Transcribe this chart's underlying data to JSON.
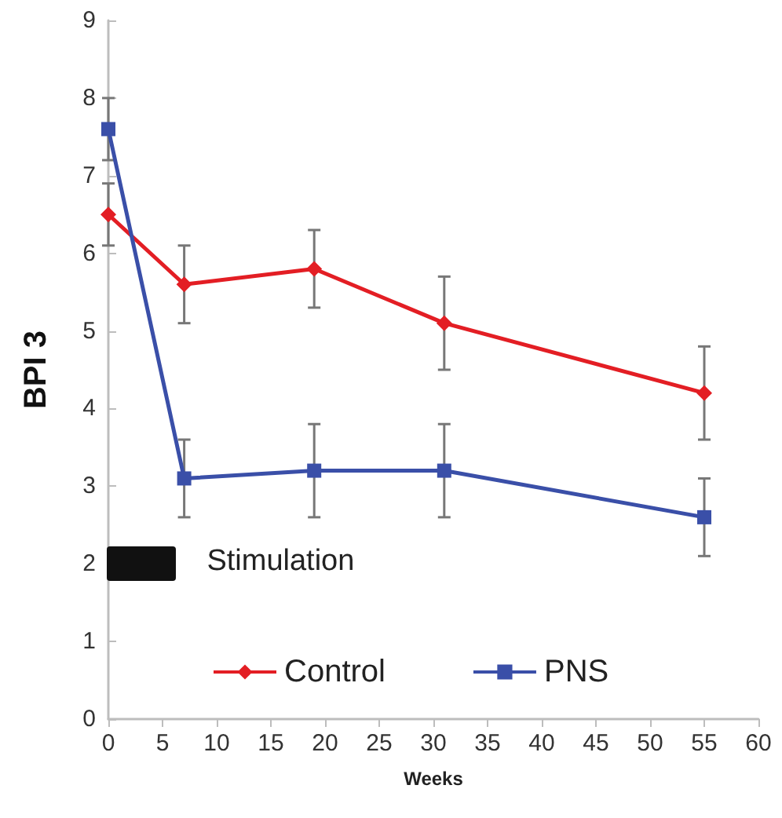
{
  "chart_data": {
    "type": "line",
    "xlabel": "Weeks",
    "ylabel": "BPI 3",
    "xlim": [
      0,
      60
    ],
    "xticks": [
      0,
      5,
      10,
      15,
      20,
      25,
      30,
      35,
      40,
      45,
      50,
      55,
      60
    ],
    "ylim": [
      0,
      9
    ],
    "yticks": [
      0,
      1,
      2,
      3,
      4,
      5,
      6,
      7,
      8,
      9
    ],
    "grid": false,
    "legend": "bottom",
    "line_style": "solid",
    "annotations": [
      "Stimulation"
    ],
    "series": [
      {
        "name": "Control",
        "color": "#e31e24",
        "marker": "diamond",
        "x": [
          0,
          7,
          19,
          31,
          55
        ],
        "values": [
          6.5,
          5.6,
          5.8,
          5.1,
          4.2
        ],
        "errors": [
          0.4,
          0.5,
          0.5,
          0.6,
          0.6
        ]
      },
      {
        "name": "PNS",
        "color": "#3a4fa8",
        "marker": "square",
        "x": [
          0,
          7,
          19,
          31,
          55
        ],
        "values": [
          7.6,
          3.1,
          3.2,
          3.2,
          2.6
        ],
        "errors": [
          0.4,
          0.5,
          0.6,
          0.6,
          0.5
        ]
      }
    ]
  }
}
